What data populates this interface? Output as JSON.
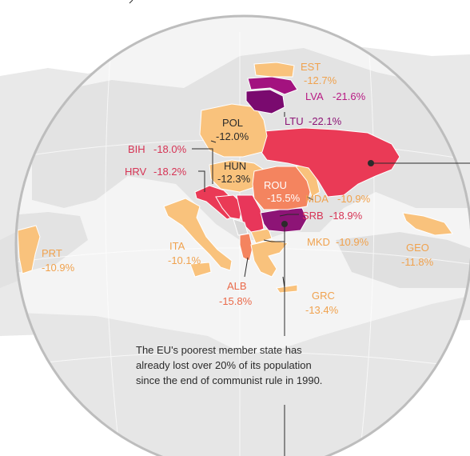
{
  "colors": {
    "background": "#ffffff",
    "map_land": "#e6e6e6",
    "map_water_gray": "#cfcfcf",
    "lens_outline": "#bdbdbd",
    "label_orange": "#f0a24e",
    "label_red": "#d63455",
    "label_purple": "#9b1c7a",
    "label_dark": "#2b2b2b"
  },
  "countries": [
    {
      "code": "EST",
      "value": "-12.7%",
      "color": "#f9c27c",
      "label_color": "#f0a24e"
    },
    {
      "code": "LVA",
      "value": "-21.6%",
      "color": "#a3127f",
      "label_color": "#b81b84"
    },
    {
      "code": "LTU",
      "value": "-22.1%",
      "color": "#7a0a6f",
      "label_color": "#8d1476"
    },
    {
      "code": "POL",
      "value": "-12.0%",
      "color": "#f9c27c",
      "label_color": "#2b2b2b"
    },
    {
      "code": "BIH",
      "value": "-18.0%",
      "color": "#ea3a56",
      "label_color": "#d63455"
    },
    {
      "code": "HRV",
      "value": "-18.2%",
      "color": "#ea3a56",
      "label_color": "#d63455"
    },
    {
      "code": "HUN",
      "value": "-12.3%",
      "color": "#f9c27c",
      "label_color": "#2b2b2b"
    },
    {
      "code": "ROU",
      "value": "-15.5%",
      "color": "#f4845f",
      "label_color": "#ffffff"
    },
    {
      "code": "MDA",
      "value": "-10.9%",
      "color": "#f9c27c",
      "label_color": "#f0a24e"
    },
    {
      "code": "SRB",
      "value": "-18.9%",
      "color": "#e8365a",
      "label_color": "#d63455"
    },
    {
      "code": "MKD",
      "value": "-10.9%",
      "color": "#f9c27c",
      "label_color": "#f0a24e"
    },
    {
      "code": "ALB",
      "value": "-15.8%",
      "color": "#f4845f",
      "label_color": "#ea6a4a"
    },
    {
      "code": "GRC",
      "value": "-13.4%",
      "color": "#f9c27c",
      "label_color": "#f0a24e"
    },
    {
      "code": "ITA",
      "value": "-10.1%",
      "color": "#f9c27c",
      "label_color": "#f0a24e"
    },
    {
      "code": "PRT",
      "value": "-10.9%",
      "color": "#f9c27c",
      "label_color": "#f0a24e"
    },
    {
      "code": "GEO",
      "value": "-11.8%",
      "color": "#f9c27c",
      "label_color": "#f0a24e"
    }
  ],
  "extra_regions": [
    {
      "name": "ukraine",
      "color": "#ea3a56"
    },
    {
      "name": "bulgaria",
      "color": "#8d1476"
    }
  ],
  "note": {
    "line1": "The EU's poorest member state has",
    "line2": "already  lost over 20% of its population",
    "line3": "since the end of communist rule in 1990."
  }
}
